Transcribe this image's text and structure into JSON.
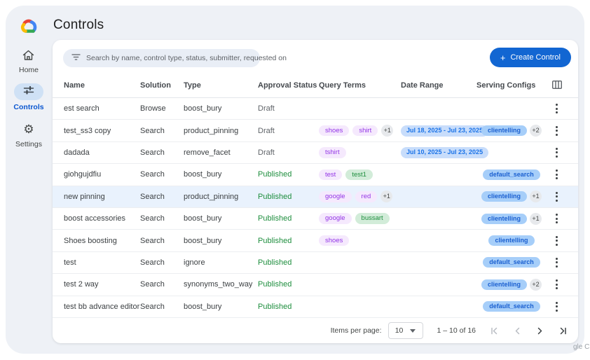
{
  "page": {
    "title": "Controls",
    "watermark": "gle C"
  },
  "sidebar": {
    "items": [
      {
        "label": "Home",
        "icon": "home-icon",
        "active": false
      },
      {
        "label": "Controls",
        "icon": "tune-icon",
        "active": true
      },
      {
        "label": "Settings",
        "icon": "gear-icon",
        "active": false
      }
    ]
  },
  "toolbar": {
    "search_placeholder": "Search by name, control type, status, submitter, requested on",
    "plus_glyph": "+",
    "create_label": "Create Control"
  },
  "table": {
    "columns": [
      "Name",
      "Solution",
      "Type",
      "Approval Status",
      "Query Terms",
      "Date Range",
      "Serving Configs"
    ],
    "rows": [
      {
        "name": "est search",
        "solution": "Browse",
        "type": "boost_bury",
        "status": "Draft",
        "query_terms": [],
        "terms_more": "",
        "date_range": "",
        "serving": "",
        "serving_more": "",
        "highlighted": false
      },
      {
        "name": "test_ss3 copy",
        "solution": "Search",
        "type": "product_pinning",
        "status": "Draft",
        "query_terms": [
          {
            "text": "shoes",
            "color": "purple"
          },
          {
            "text": "shirt",
            "color": "purple"
          }
        ],
        "terms_more": "+1",
        "date_range": "Jul 18, 2025 - Jul 23, 2025",
        "serving": "clientelling",
        "serving_more": "+2",
        "highlighted": false
      },
      {
        "name": "dadada",
        "solution": "Search",
        "type": "remove_facet",
        "status": "Draft",
        "query_terms": [
          {
            "text": "tshirt",
            "color": "purple"
          }
        ],
        "terms_more": "",
        "date_range": "Jul 10, 2025 - Jul 23, 2025",
        "serving": "",
        "serving_more": "",
        "highlighted": false
      },
      {
        "name": "giohgujdfiu",
        "solution": "Search",
        "type": "boost_bury",
        "status": "Published",
        "query_terms": [
          {
            "text": "test",
            "color": "purple"
          },
          {
            "text": "test1",
            "color": "green"
          }
        ],
        "terms_more": "",
        "date_range": "",
        "serving": "default_search",
        "serving_more": "",
        "highlighted": false
      },
      {
        "name": "new pinning",
        "solution": "Search",
        "type": "product_pinning",
        "status": "Published",
        "query_terms": [
          {
            "text": "google",
            "color": "purple"
          },
          {
            "text": "red",
            "color": "purple"
          }
        ],
        "terms_more": "+1",
        "date_range": "",
        "serving": "clientelling",
        "serving_more": "+1",
        "highlighted": true
      },
      {
        "name": "boost accessories",
        "solution": "Search",
        "type": "boost_bury",
        "status": "Published",
        "query_terms": [
          {
            "text": "google",
            "color": "purple"
          },
          {
            "text": "bussart",
            "color": "green"
          }
        ],
        "terms_more": "",
        "date_range": "",
        "serving": "clientelling",
        "serving_more": "+1",
        "highlighted": false
      },
      {
        "name": "Shoes boosting",
        "solution": "Search",
        "type": "boost_bury",
        "status": "Published",
        "query_terms": [
          {
            "text": "shoes",
            "color": "purple"
          }
        ],
        "terms_more": "",
        "date_range": "",
        "serving": "clientelling",
        "serving_more": "",
        "highlighted": false
      },
      {
        "name": "test",
        "solution": "Search",
        "type": "ignore",
        "status": "Published",
        "query_terms": [],
        "terms_more": "",
        "date_range": "",
        "serving": "default_search",
        "serving_more": "",
        "highlighted": false
      },
      {
        "name": "test 2 way",
        "solution": "Search",
        "type": "synonyms_two_way",
        "status": "Published",
        "query_terms": [],
        "terms_more": "",
        "date_range": "",
        "serving": "clientelling",
        "serving_more": "+2",
        "highlighted": false
      },
      {
        "name": "test bb advance editor",
        "solution": "Search",
        "type": "boost_bury",
        "status": "Published",
        "query_terms": [],
        "terms_more": "",
        "date_range": "",
        "serving": "default_search",
        "serving_more": "",
        "highlighted": false
      }
    ]
  },
  "pagination": {
    "items_per_page_label": "Items per page:",
    "items_per_page_value": "10",
    "range_label": "1 – 10 of 16"
  },
  "icons": {
    "settings_glyph": "⚙"
  },
  "colors": {
    "primary_blue": "#1266d2",
    "active_label_blue": "#0b57d0",
    "published_green": "#1e8e3e",
    "chip_purple_bg": "#f5e9fd",
    "chip_purple_text": "#9334e6",
    "chip_green_bg": "#d2ecd9",
    "chip_green_text": "#1e8e3e",
    "chip_date_bg": "#c8ddfb",
    "chip_date_text": "#1a73e8",
    "chip_serving_bg": "#a6cef9",
    "chip_serving_text": "#1a5fd0",
    "container_bg": "#eef1f6"
  }
}
